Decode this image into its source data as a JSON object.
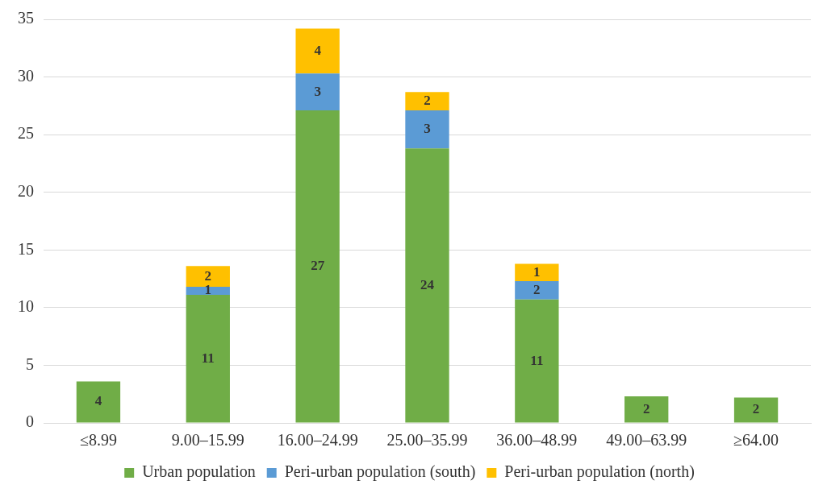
{
  "chart_data": {
    "type": "bar",
    "stacked": true,
    "categories": [
      "≤8.99",
      "9.00–15.99",
      "16.00–24.99",
      "25.00–35.99",
      "36.00–48.99",
      "49.00–63.99",
      "≥64.00"
    ],
    "series": [
      {
        "name": "Urban population",
        "color": "#70ad47",
        "values": [
          3.6,
          11.1,
          27.1,
          23.8,
          10.7,
          2.3,
          2.2
        ],
        "value_labels": [
          "4",
          "11",
          "27",
          "24",
          "11",
          "2",
          "2"
        ]
      },
      {
        "name": "Peri-urban population (south)",
        "color": "#5b9bd5",
        "values": [
          null,
          0.7,
          3.2,
          3.3,
          1.6,
          null,
          null
        ],
        "value_labels": [
          null,
          "1",
          "3",
          "3",
          "2",
          null,
          null
        ]
      },
      {
        "name": "Peri-urban population (north)",
        "color": "#ffc000",
        "values": [
          null,
          1.8,
          3.9,
          1.6,
          1.5,
          null,
          null
        ],
        "value_labels": [
          null,
          "2",
          "4",
          "2",
          "1",
          null,
          null
        ]
      }
    ],
    "ylim": [
      0,
      35
    ],
    "yticks": [
      0,
      5,
      10,
      15,
      20,
      25,
      30,
      35
    ],
    "grid": "y",
    "legend": "bottom"
  }
}
